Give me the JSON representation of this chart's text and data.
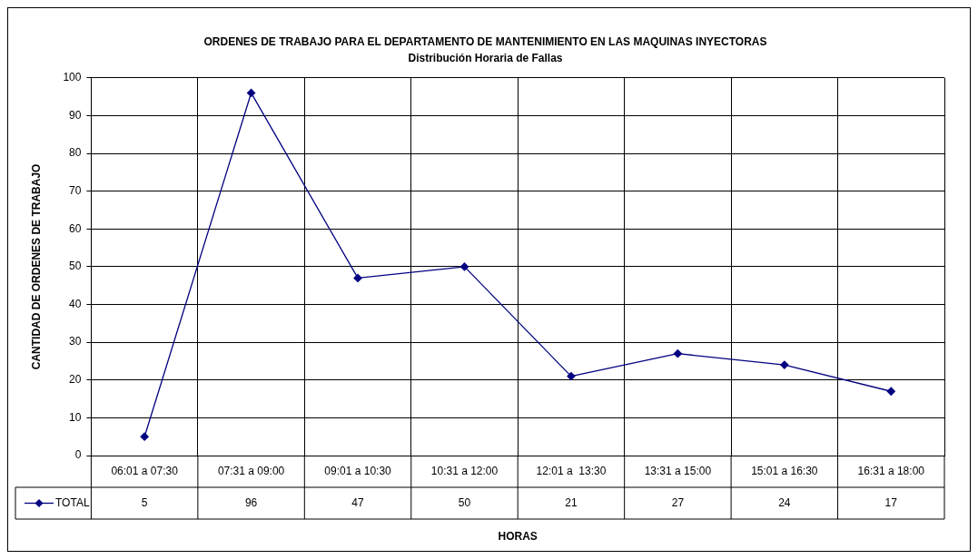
{
  "chart_data": {
    "type": "line",
    "title": "ORDENES DE TRABAJO PARA EL DEPARTAMENTO DE MANTENIMIENTO EN LAS MAQUINAS INYECTORAS",
    "subtitle": "Distribución Horaria de Fallas",
    "xlabel": "HORAS",
    "ylabel": "CANTIDAD DE ORDENES DE TRABAJO",
    "categories": [
      "06:01 a 07:30",
      "07:31 a 09:00",
      "09:01 a 10:30",
      "10:31 a 12:00",
      "12:01 a  13:30",
      "13:31 a 15:00",
      "15:01 a 16:30",
      "16:31 a 18:00"
    ],
    "series": [
      {
        "name": "TOTAL",
        "color": "#000080",
        "values": [
          5,
          96,
          47,
          50,
          21,
          27,
          24,
          17
        ]
      }
    ],
    "ylim": [
      0,
      100
    ],
    "yticks": [
      0,
      10,
      20,
      30,
      40,
      50,
      60,
      70,
      80,
      90,
      100
    ],
    "grid": true,
    "legend": "bottom",
    "marker": "diamond",
    "line_style": "solid",
    "data_labels": true
  }
}
